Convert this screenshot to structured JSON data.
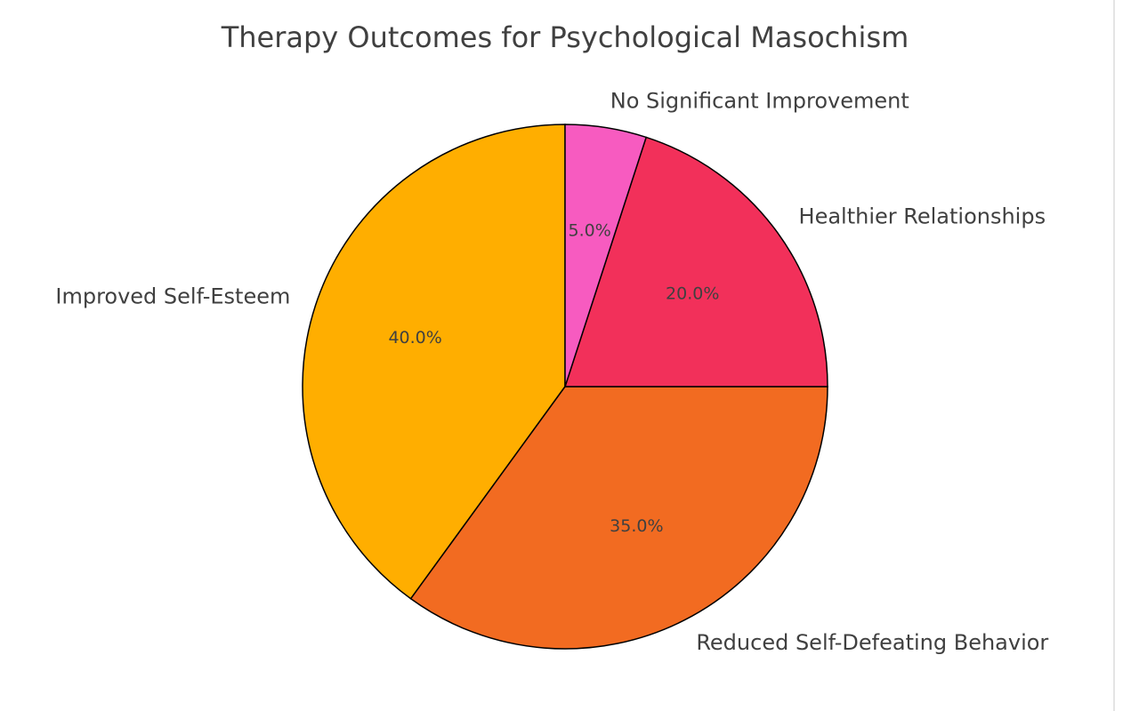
{
  "chart_data": {
    "type": "pie",
    "title": "Therapy Outcomes for Psychological Masochism",
    "categories": [
      "Improved Self-Esteem",
      "Reduced Self-Defeating Behavior",
      "Healthier Relationships",
      "No Significant Improvement"
    ],
    "values": [
      40,
      35,
      20,
      5
    ],
    "value_labels": [
      "40.0%",
      "35.0%",
      "20.0%",
      "5.0%"
    ],
    "colors": [
      "#FFAE00",
      "#F26B21",
      "#F2305A",
      "#F75BC0"
    ]
  }
}
